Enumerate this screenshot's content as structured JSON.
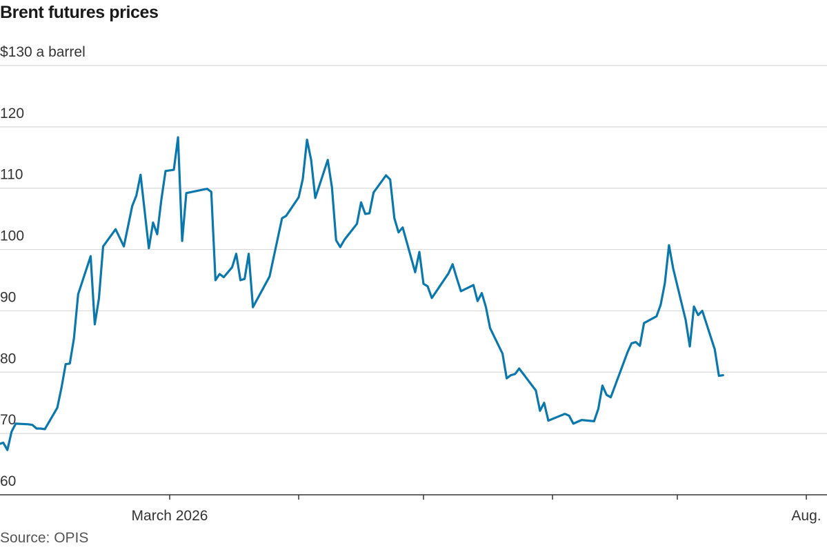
{
  "title": "Brent futures prices",
  "source": "Source: OPIS",
  "colors": {
    "line": "#0a77ad",
    "grid": "#d9d9d9",
    "axis": "#333333"
  },
  "chart_data": {
    "type": "line",
    "title": "Brent futures prices",
    "ylabel": "",
    "ylim": [
      60,
      130
    ],
    "y_ticks": [
      60,
      70,
      80,
      90,
      100,
      110,
      120,
      130
    ],
    "y_tick_labels": [
      "60",
      "70",
      "80",
      "90",
      "100",
      "110",
      "120",
      "$130 a barrel"
    ],
    "x_ticks": [
      {
        "date": "2026-03-01",
        "label": "March 2026"
      },
      {
        "date": "2026-04-01",
        "label": ""
      },
      {
        "date": "2026-05-01",
        "label": ""
      },
      {
        "date": "2026-06-01",
        "label": ""
      },
      {
        "date": "2026-07-01",
        "label": ""
      },
      {
        "date": "2026-08-01",
        "label": "Aug."
      }
    ],
    "grid": true,
    "legend": "none",
    "series": [
      {
        "points": [
          [
            "2026-01-02",
            66.1
          ],
          [
            "2026-01-05",
            67.4
          ],
          [
            "2026-01-06",
            69.3
          ],
          [
            "2026-01-07",
            67.5
          ],
          [
            "2026-01-08",
            67.9
          ],
          [
            "2026-01-12",
            68.9
          ],
          [
            "2026-01-13",
            68.6
          ],
          [
            "2026-01-14",
            69.3
          ],
          [
            "2026-01-15",
            67.4
          ],
          [
            "2026-01-20",
            68.5
          ],
          [
            "2026-01-21",
            67.3
          ],
          [
            "2026-01-22",
            70.3
          ],
          [
            "2026-01-23",
            71.6
          ],
          [
            "2026-01-26",
            71.5
          ],
          [
            "2026-01-27",
            71.4
          ],
          [
            "2026-01-28",
            70.8
          ],
          [
            "2026-01-29",
            70.8
          ],
          [
            "2026-01-30",
            70.7
          ],
          [
            "2026-02-02",
            74.2
          ],
          [
            "2026-02-03",
            77.5
          ],
          [
            "2026-02-04",
            81.3
          ],
          [
            "2026-02-05",
            81.4
          ],
          [
            "2026-02-06",
            85.5
          ],
          [
            "2026-02-07",
            92.7
          ],
          [
            "2026-02-10",
            98.9
          ],
          [
            "2026-02-11",
            87.8
          ],
          [
            "2026-02-12",
            92.0
          ],
          [
            "2026-02-13",
            100.5
          ],
          [
            "2026-02-16",
            103.3
          ],
          [
            "2026-02-18",
            100.5
          ],
          [
            "2026-02-20",
            107.1
          ],
          [
            "2026-02-21",
            108.8
          ],
          [
            "2026-02-22",
            112.2
          ],
          [
            "2026-02-24",
            100.2
          ],
          [
            "2026-02-25",
            104.4
          ],
          [
            "2026-02-26",
            102.5
          ],
          [
            "2026-02-27",
            108.1
          ],
          [
            "2026-02-28",
            112.8
          ],
          [
            "2026-03-02",
            113.0
          ],
          [
            "2026-03-03",
            118.3
          ],
          [
            "2026-03-04",
            101.4
          ],
          [
            "2026-03-05",
            109.2
          ],
          [
            "2026-03-10",
            109.9
          ],
          [
            "2026-03-11",
            109.4
          ],
          [
            "2026-03-12",
            95.0
          ],
          [
            "2026-03-13",
            96.0
          ],
          [
            "2026-03-14",
            95.5
          ],
          [
            "2026-03-16",
            97.1
          ],
          [
            "2026-03-17",
            99.3
          ],
          [
            "2026-03-18",
            95.0
          ],
          [
            "2026-03-19",
            95.2
          ],
          [
            "2026-03-20",
            99.3
          ],
          [
            "2026-03-21",
            90.6
          ],
          [
            "2026-03-25",
            95.6
          ],
          [
            "2026-03-28",
            105.1
          ],
          [
            "2026-03-29",
            105.5
          ],
          [
            "2026-04-01",
            108.5
          ],
          [
            "2026-04-02",
            111.5
          ],
          [
            "2026-04-03",
            117.9
          ],
          [
            "2026-04-04",
            114.6
          ],
          [
            "2026-04-05",
            108.4
          ],
          [
            "2026-04-08",
            114.6
          ],
          [
            "2026-04-09",
            110.1
          ],
          [
            "2026-04-10",
            101.5
          ],
          [
            "2026-04-11",
            100.4
          ],
          [
            "2026-04-12",
            101.6
          ],
          [
            "2026-04-15",
            104.2
          ],
          [
            "2026-04-16",
            107.7
          ],
          [
            "2026-04-17",
            105.8
          ],
          [
            "2026-04-18",
            105.9
          ],
          [
            "2026-04-19",
            109.3
          ],
          [
            "2026-04-22",
            112.1
          ],
          [
            "2026-04-23",
            111.4
          ],
          [
            "2026-04-24",
            105.1
          ],
          [
            "2026-04-25",
            102.8
          ],
          [
            "2026-04-26",
            103.6
          ],
          [
            "2026-04-29",
            96.3
          ],
          [
            "2026-04-30",
            99.6
          ],
          [
            "2026-05-01",
            94.4
          ],
          [
            "2026-05-02",
            94.0
          ],
          [
            "2026-05-03",
            92.1
          ],
          [
            "2026-05-07",
            96.1
          ],
          [
            "2026-05-08",
            97.6
          ],
          [
            "2026-05-09",
            95.3
          ],
          [
            "2026-05-10",
            93.2
          ],
          [
            "2026-05-13",
            94.2
          ],
          [
            "2026-05-14",
            91.6
          ],
          [
            "2026-05-15",
            92.9
          ],
          [
            "2026-05-16",
            90.6
          ],
          [
            "2026-05-17",
            87.2
          ],
          [
            "2026-05-20",
            83.0
          ],
          [
            "2026-05-21",
            79.0
          ],
          [
            "2026-05-22",
            79.5
          ],
          [
            "2026-05-23",
            79.7
          ],
          [
            "2026-05-24",
            80.6
          ],
          [
            "2026-05-28",
            77.0
          ],
          [
            "2026-05-29",
            73.7
          ],
          [
            "2026-05-30",
            75.0
          ],
          [
            "2026-05-31",
            72.1
          ],
          [
            "2026-06-04",
            73.2
          ],
          [
            "2026-06-05",
            72.9
          ],
          [
            "2026-06-06",
            71.6
          ],
          [
            "2026-06-08",
            72.2
          ],
          [
            "2026-06-11",
            72.0
          ],
          [
            "2026-06-12",
            74.0
          ],
          [
            "2026-06-13",
            77.8
          ],
          [
            "2026-06-14",
            76.3
          ],
          [
            "2026-06-15",
            75.9
          ],
          [
            "2026-06-19",
            83.2
          ],
          [
            "2026-06-20",
            84.7
          ],
          [
            "2026-06-21",
            84.9
          ],
          [
            "2026-06-22",
            84.3
          ],
          [
            "2026-06-23",
            88.0
          ],
          [
            "2026-06-26",
            89.1
          ],
          [
            "2026-06-27",
            91.0
          ],
          [
            "2026-06-28",
            94.5
          ],
          [
            "2026-06-29",
            100.7
          ],
          [
            "2026-06-30",
            96.9
          ],
          [
            "2026-07-03",
            88.5
          ],
          [
            "2026-07-04",
            84.2
          ],
          [
            "2026-07-05",
            90.7
          ],
          [
            "2026-07-06",
            89.3
          ],
          [
            "2026-07-07",
            90.0
          ],
          [
            "2026-07-10",
            83.7
          ],
          [
            "2026-07-11",
            79.4
          ],
          [
            "2026-07-12",
            79.5
          ]
        ]
      }
    ]
  }
}
